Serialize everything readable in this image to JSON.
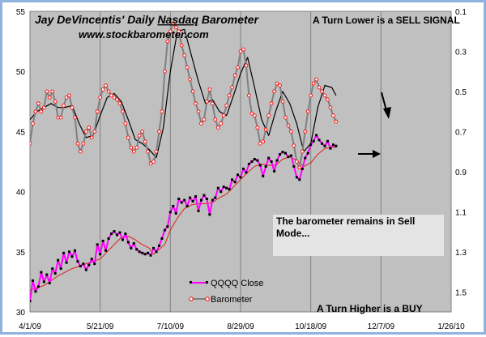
{
  "chart_data": {
    "type": "line",
    "title": "Jay DeVincentis' Daily Nasdaq Barometer",
    "title_prefix": "Jay DeVincentis' Daily ",
    "title_underlined": "Nasdaq",
    "title_suffix": " Barometer",
    "website": "www.stockbarometer.com",
    "annotation_top": "A Turn Lower is a SELL SIGNAL",
    "annotation_bottom": "A Turn Higher is a BUY",
    "note_box_line1": "The barometer remains in Sell",
    "note_box_line2": "Mode...",
    "x_tick_labels": [
      "4/1/09",
      "5/21/09",
      "7/10/09",
      "8/29/09",
      "10/18/09",
      "12/7/09",
      "1/26/10"
    ],
    "xlim_day_offsets": [
      0,
      300
    ],
    "y_left": {
      "ticks": [
        "30",
        "35",
        "40",
        "45",
        "50",
        "55"
      ],
      "ylim": [
        30,
        55
      ]
    },
    "y_right": {
      "ticks": [
        "0.1",
        "0.3",
        "0.5",
        "0.7",
        "0.9",
        "1.1",
        "1.3",
        "1.5"
      ],
      "ylim": [
        0.1,
        1.6
      ],
      "inverted": true
    },
    "grid": "vertical lines at x ticks",
    "legend_position": "bottom-center",
    "series": [
      {
        "name": "QQQQ Close",
        "axis": "left",
        "color": "#ff00ff",
        "marker_color": "#000000",
        "points": [
          [
            0,
            30.9
          ],
          [
            2,
            32.6
          ],
          [
            4,
            31.7
          ],
          [
            6,
            32.1
          ],
          [
            8,
            33.3
          ],
          [
            10,
            32.5
          ],
          [
            12,
            33.1
          ],
          [
            14,
            32.4
          ],
          [
            16,
            33.6
          ],
          [
            18,
            33.2
          ],
          [
            20,
            34.3
          ],
          [
            22,
            33.6
          ],
          [
            24,
            34.9
          ],
          [
            26,
            34.1
          ],
          [
            28,
            35.0
          ],
          [
            30,
            34.6
          ],
          [
            32,
            35.1
          ],
          [
            34,
            34.2
          ],
          [
            36,
            33.8
          ],
          [
            38,
            34.0
          ],
          [
            40,
            33.5
          ],
          [
            42,
            33.9
          ],
          [
            44,
            34.4
          ],
          [
            46,
            34.0
          ],
          [
            48,
            35.6
          ],
          [
            50,
            34.8
          ],
          [
            52,
            35.9
          ],
          [
            54,
            35.1
          ],
          [
            56,
            36.1
          ],
          [
            58,
            36.5
          ],
          [
            60,
            36.7
          ],
          [
            62,
            36.4
          ],
          [
            64,
            36.6
          ],
          [
            66,
            36.0
          ],
          [
            68,
            36.5
          ],
          [
            70,
            35.8
          ],
          [
            72,
            35.3
          ],
          [
            74,
            35.7
          ],
          [
            76,
            35.2
          ],
          [
            78,
            35.0
          ],
          [
            80,
            34.9
          ],
          [
            82,
            34.8
          ],
          [
            84,
            34.9
          ],
          [
            86,
            34.7
          ],
          [
            88,
            35.3
          ],
          [
            90,
            35.0
          ],
          [
            92,
            35.5
          ],
          [
            94,
            36.1
          ],
          [
            96,
            36.8
          ],
          [
            98,
            37.1
          ],
          [
            100,
            38.3
          ],
          [
            102,
            38.8
          ],
          [
            104,
            38.2
          ],
          [
            106,
            39.4
          ],
          [
            108,
            39.1
          ],
          [
            110,
            39.3
          ],
          [
            112,
            38.8
          ],
          [
            114,
            39.5
          ],
          [
            116,
            39.2
          ],
          [
            118,
            39.6
          ],
          [
            120,
            38.4
          ],
          [
            122,
            39.3
          ],
          [
            124,
            39.7
          ],
          [
            126,
            39.4
          ],
          [
            128,
            38.1
          ],
          [
            130,
            39.3
          ],
          [
            132,
            39.5
          ],
          [
            134,
            40.3
          ],
          [
            136,
            40.0
          ],
          [
            138,
            40.4
          ],
          [
            140,
            40.3
          ],
          [
            142,
            40.2
          ],
          [
            144,
            41.0
          ],
          [
            146,
            40.8
          ],
          [
            148,
            41.4
          ],
          [
            150,
            41.2
          ],
          [
            152,
            41.9
          ],
          [
            154,
            41.6
          ],
          [
            156,
            42.3
          ],
          [
            158,
            42.5
          ],
          [
            160,
            42.7
          ],
          [
            162,
            42.6
          ],
          [
            164,
            42.2
          ],
          [
            166,
            41.3
          ],
          [
            168,
            42.1
          ],
          [
            170,
            42.8
          ],
          [
            172,
            42.5
          ],
          [
            174,
            41.7
          ],
          [
            176,
            42.6
          ],
          [
            178,
            43.1
          ],
          [
            180,
            43.3
          ],
          [
            182,
            43.2
          ],
          [
            184,
            42.9
          ],
          [
            186,
            43.0
          ],
          [
            188,
            42.1
          ],
          [
            190,
            41.2
          ],
          [
            192,
            41.0
          ],
          [
            194,
            41.9
          ],
          [
            196,
            42.8
          ],
          [
            198,
            43.2
          ],
          [
            200,
            43.9
          ],
          [
            202,
            44.2
          ],
          [
            204,
            44.7
          ],
          [
            206,
            44.3
          ],
          [
            208,
            44.0
          ],
          [
            210,
            43.8
          ],
          [
            212,
            44.2
          ],
          [
            214,
            43.6
          ],
          [
            216,
            43.9
          ],
          [
            218,
            43.8
          ]
        ]
      },
      {
        "name": "Barometer",
        "axis": "right",
        "color": "#808080",
        "marker_color": "#ff0000",
        "points": [
          [
            0,
            0.76
          ],
          [
            2,
            0.66
          ],
          [
            4,
            0.6
          ],
          [
            6,
            0.56
          ],
          [
            8,
            0.6
          ],
          [
            10,
            0.58
          ],
          [
            12,
            0.5
          ],
          [
            14,
            0.53
          ],
          [
            16,
            0.5
          ],
          [
            18,
            0.55
          ],
          [
            20,
            0.63
          ],
          [
            22,
            0.63
          ],
          [
            24,
            0.57
          ],
          [
            26,
            0.53
          ],
          [
            28,
            0.52
          ],
          [
            30,
            0.58
          ],
          [
            32,
            0.63
          ],
          [
            34,
            0.76
          ],
          [
            36,
            0.8
          ],
          [
            38,
            0.76
          ],
          [
            40,
            0.7
          ],
          [
            42,
            0.68
          ],
          [
            44,
            0.73
          ],
          [
            46,
            0.7
          ],
          [
            48,
            0.6
          ],
          [
            50,
            0.53
          ],
          [
            52,
            0.49
          ],
          [
            54,
            0.47
          ],
          [
            56,
            0.5
          ],
          [
            58,
            0.52
          ],
          [
            60,
            0.53
          ],
          [
            62,
            0.54
          ],
          [
            64,
            0.56
          ],
          [
            66,
            0.6
          ],
          [
            68,
            0.66
          ],
          [
            70,
            0.73
          ],
          [
            72,
            0.78
          ],
          [
            74,
            0.8
          ],
          [
            76,
            0.78
          ],
          [
            78,
            0.72
          ],
          [
            80,
            0.7
          ],
          [
            82,
            0.75
          ],
          [
            84,
            0.8
          ],
          [
            86,
            0.86
          ],
          [
            88,
            0.85
          ],
          [
            90,
            0.8
          ],
          [
            92,
            0.7
          ],
          [
            94,
            0.6
          ],
          [
            96,
            0.4
          ],
          [
            98,
            0.25
          ],
          [
            100,
            0.2
          ],
          [
            102,
            0.16
          ],
          [
            104,
            0.18
          ],
          [
            106,
            0.2
          ],
          [
            108,
            0.27
          ],
          [
            110,
            0.32
          ],
          [
            112,
            0.38
          ],
          [
            114,
            0.44
          ],
          [
            116,
            0.5
          ],
          [
            118,
            0.56
          ],
          [
            120,
            0.6
          ],
          [
            122,
            0.66
          ],
          [
            124,
            0.64
          ],
          [
            126,
            0.55
          ],
          [
            128,
            0.49
          ],
          [
            130,
            0.56
          ],
          [
            132,
            0.64
          ],
          [
            134,
            0.68
          ],
          [
            136,
            0.66
          ],
          [
            138,
            0.62
          ],
          [
            140,
            0.57
          ],
          [
            142,
            0.52
          ],
          [
            144,
            0.48
          ],
          [
            146,
            0.42
          ],
          [
            148,
            0.38
          ],
          [
            150,
            0.3
          ],
          [
            152,
            0.29
          ],
          [
            154,
            0.37
          ],
          [
            156,
            0.52
          ],
          [
            158,
            0.61
          ],
          [
            160,
            0.62
          ],
          [
            162,
            0.68
          ],
          [
            164,
            0.76
          ],
          [
            166,
            0.75
          ],
          [
            168,
            0.69
          ],
          [
            170,
            0.62
          ],
          [
            172,
            0.56
          ],
          [
            174,
            0.5
          ],
          [
            176,
            0.46
          ],
          [
            178,
            0.47
          ],
          [
            180,
            0.55
          ],
          [
            182,
            0.63
          ],
          [
            184,
            0.67
          ],
          [
            186,
            0.7
          ],
          [
            188,
            0.77
          ],
          [
            190,
            0.85
          ],
          [
            192,
            0.88
          ],
          [
            194,
            0.8
          ],
          [
            196,
            0.7
          ],
          [
            198,
            0.6
          ],
          [
            200,
            0.52
          ],
          [
            202,
            0.46
          ],
          [
            204,
            0.44
          ],
          [
            206,
            0.48
          ],
          [
            208,
            0.5
          ],
          [
            210,
            0.52
          ],
          [
            212,
            0.54
          ],
          [
            214,
            0.58
          ],
          [
            216,
            0.62
          ],
          [
            218,
            0.65
          ]
        ]
      },
      {
        "axis": "left",
        "style": "thin red moving average of QQQQ Close",
        "color": "#e02020",
        "points": [
          [
            0,
            31.8
          ],
          [
            10,
            32.2
          ],
          [
            20,
            33.0
          ],
          [
            30,
            33.6
          ],
          [
            40,
            34.0
          ],
          [
            50,
            34.4
          ],
          [
            60,
            35.6
          ],
          [
            65,
            36.2
          ],
          [
            70,
            36.3
          ],
          [
            75,
            36.0
          ],
          [
            80,
            35.6
          ],
          [
            85,
            35.3
          ],
          [
            88,
            34.8
          ],
          [
            92,
            35.2
          ],
          [
            96,
            35.6
          ],
          [
            100,
            36.8
          ],
          [
            105,
            37.8
          ],
          [
            110,
            38.6
          ],
          [
            115,
            38.9
          ],
          [
            120,
            39.0
          ],
          [
            125,
            39.0
          ],
          [
            130,
            39.1
          ],
          [
            135,
            39.5
          ],
          [
            140,
            39.8
          ],
          [
            145,
            40.4
          ],
          [
            150,
            41.0
          ],
          [
            155,
            41.6
          ],
          [
            160,
            42.1
          ],
          [
            165,
            42.3
          ],
          [
            170,
            42.2
          ],
          [
            175,
            42.2
          ],
          [
            180,
            42.7
          ],
          [
            185,
            42.9
          ],
          [
            190,
            42.6
          ],
          [
            195,
            42.1
          ],
          [
            200,
            42.4
          ],
          [
            205,
            43.1
          ],
          [
            210,
            43.6
          ],
          [
            215,
            43.7
          ],
          [
            218,
            43.7
          ]
        ]
      },
      {
        "axis": "right",
        "style": "thin black moving average of Barometer",
        "color": "#000000",
        "points": [
          [
            0,
            0.64
          ],
          [
            5,
            0.6
          ],
          [
            10,
            0.58
          ],
          [
            15,
            0.56
          ],
          [
            20,
            0.58
          ],
          [
            25,
            0.58
          ],
          [
            30,
            0.57
          ],
          [
            35,
            0.66
          ],
          [
            40,
            0.73
          ],
          [
            45,
            0.72
          ],
          [
            50,
            0.62
          ],
          [
            55,
            0.53
          ],
          [
            60,
            0.51
          ],
          [
            65,
            0.55
          ],
          [
            70,
            0.64
          ],
          [
            75,
            0.74
          ],
          [
            80,
            0.76
          ],
          [
            85,
            0.79
          ],
          [
            90,
            0.83
          ],
          [
            95,
            0.68
          ],
          [
            100,
            0.4
          ],
          [
            105,
            0.2
          ],
          [
            110,
            0.19
          ],
          [
            115,
            0.32
          ],
          [
            120,
            0.45
          ],
          [
            125,
            0.56
          ],
          [
            130,
            0.54
          ],
          [
            135,
            0.6
          ],
          [
            140,
            0.62
          ],
          [
            145,
            0.52
          ],
          [
            150,
            0.41
          ],
          [
            155,
            0.33
          ],
          [
            160,
            0.48
          ],
          [
            165,
            0.64
          ],
          [
            170,
            0.72
          ],
          [
            175,
            0.6
          ],
          [
            180,
            0.5
          ],
          [
            185,
            0.56
          ],
          [
            190,
            0.66
          ],
          [
            195,
            0.8
          ],
          [
            200,
            0.76
          ],
          [
            205,
            0.58
          ],
          [
            210,
            0.47
          ],
          [
            215,
            0.48
          ],
          [
            218,
            0.52
          ]
        ]
      }
    ]
  }
}
